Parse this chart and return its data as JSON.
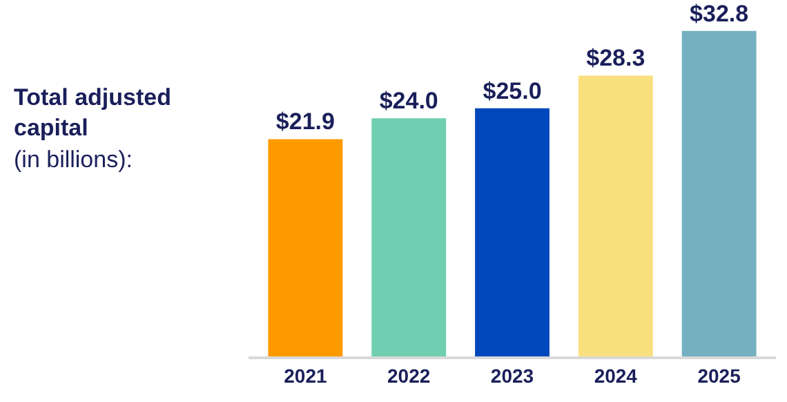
{
  "chart_data": {
    "type": "bar",
    "title": "Total adjusted capital",
    "subtitle": "(in billions):",
    "categories": [
      "2021",
      "2022",
      "2023",
      "2024",
      "2025"
    ],
    "values": [
      21.9,
      24.0,
      25.0,
      28.3,
      32.8
    ],
    "value_labels": [
      "$21.9",
      "$24.0",
      "$25.0",
      "$28.3",
      "$32.8"
    ],
    "colors": [
      "#ff9900",
      "#6fcfb0",
      "#0047bb",
      "#f9e07f",
      "#74b0bf"
    ],
    "tick_labels": "x",
    "grid": false,
    "legend": false
  }
}
